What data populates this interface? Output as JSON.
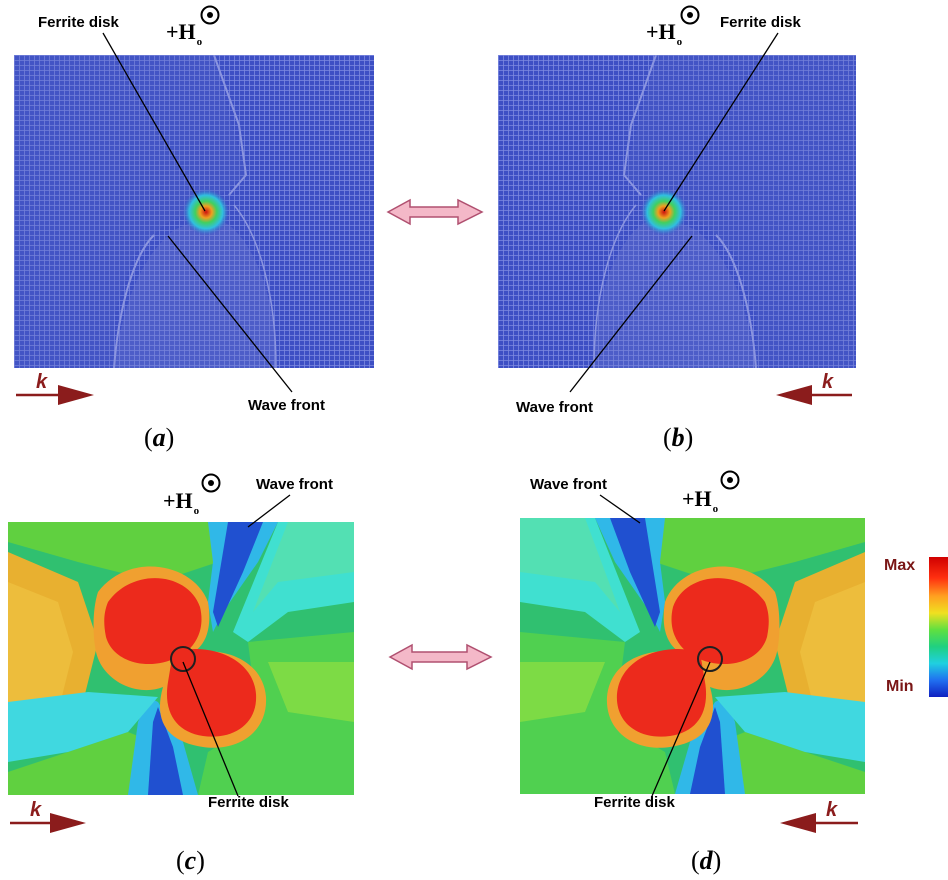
{
  "panels": {
    "a": {
      "caption_letter": "a",
      "ferrite_label": "Ferrite disk",
      "wave_label": "Wave front",
      "k_label": "k",
      "field_main": "+H",
      "field_sub": "o"
    },
    "b": {
      "caption_letter": "b",
      "ferrite_label": "Ferrite disk",
      "wave_label": "Wave front",
      "k_label": "k",
      "field_main": "+H",
      "field_sub": "o"
    },
    "c": {
      "caption_letter": "c",
      "ferrite_label": "Ferrite disk",
      "wave_label": "Wave front",
      "k_label": "k",
      "field_main": "+H",
      "field_sub": "o"
    },
    "d": {
      "caption_letter": "d",
      "ferrite_label": "Ferrite disk",
      "wave_label": "Wave front",
      "k_label": "k",
      "field_main": "+H",
      "field_sub": "o"
    }
  },
  "colorscale": {
    "max_label": "Max",
    "min_label": "Min"
  },
  "colors": {
    "arrow_k": "#8b1c1c",
    "double_arrow_fill": "#f4b8c8",
    "double_arrow_stroke": "#b05070",
    "scale_label": "#7a1616"
  }
}
